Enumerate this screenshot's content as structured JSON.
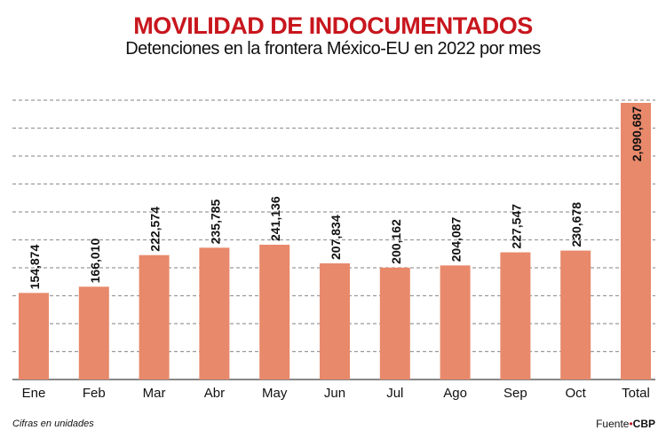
{
  "title": "MOVILIDAD DE INDOCUMENTADOS",
  "subtitle": "Detenciones en la frontera México-EU en 2022 por mes",
  "note": "Cifras en unidades",
  "source_label": "Fuente",
  "source_name": "CBP",
  "colors": {
    "bar": "#e8896b",
    "title": "#c8161d",
    "grid": "#9a9a9a"
  },
  "chart_data": {
    "type": "bar",
    "title": "MOVILIDAD DE INDOCUMENTADOS",
    "subtitle": "Detenciones en la frontera México-EU en 2022 por mes",
    "categories": [
      "Ene",
      "Feb",
      "Mar",
      "Abr",
      "May",
      "Jun",
      "Jul",
      "Ago",
      "Sep",
      "Oct",
      "Total"
    ],
    "values": [
      154874,
      166010,
      222574,
      235785,
      241136,
      207834,
      200162,
      204087,
      227547,
      230678,
      2090687
    ],
    "labels": [
      "154,874",
      "166,010",
      "222,574",
      "235,785",
      "241,136",
      "207,834",
      "200,162",
      "204,087",
      "227,547",
      "230,678",
      "2,090,687"
    ],
    "grid": true,
    "gridlines": "dashed horizontal",
    "axis_break": "Total bar not to scale"
  }
}
